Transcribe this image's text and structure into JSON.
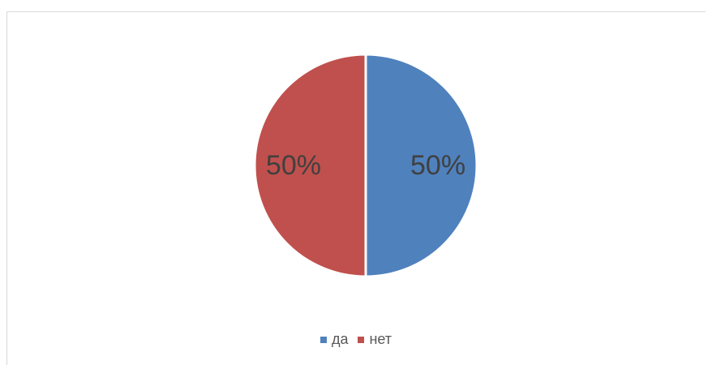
{
  "chart_data": {
    "type": "pie",
    "title": "",
    "slices": [
      {
        "name": "да",
        "value": 50,
        "label": "50%",
        "color": "#4f81bd"
      },
      {
        "name": "нет",
        "value": 50,
        "label": "50%",
        "color": "#c0504d"
      }
    ],
    "legend_position": "bottom"
  }
}
